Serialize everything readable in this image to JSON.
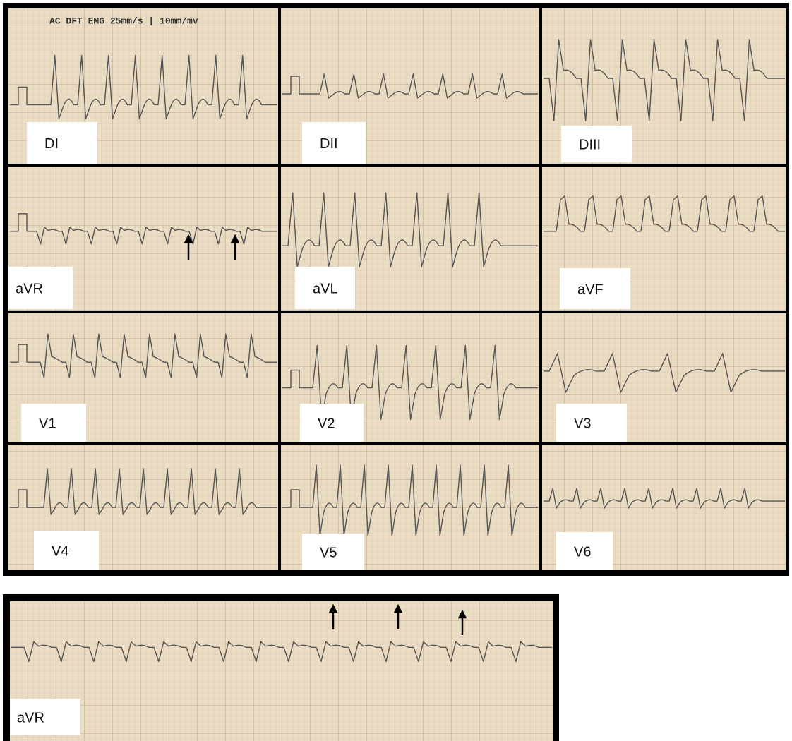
{
  "header_text": "AC DFT EMG  25mm/s | 10mm/mv",
  "leads": [
    {
      "label": "DI"
    },
    {
      "label": "DII"
    },
    {
      "label": "DIII"
    },
    {
      "label": "aVR"
    },
    {
      "label": "aVL"
    },
    {
      "label": "aVF"
    },
    {
      "label": "V1"
    },
    {
      "label": "V2"
    },
    {
      "label": "V3"
    },
    {
      "label": "V4"
    },
    {
      "label": "V5"
    },
    {
      "label": "V6"
    }
  ],
  "rhythm_strip": {
    "label": "aVR"
  }
}
